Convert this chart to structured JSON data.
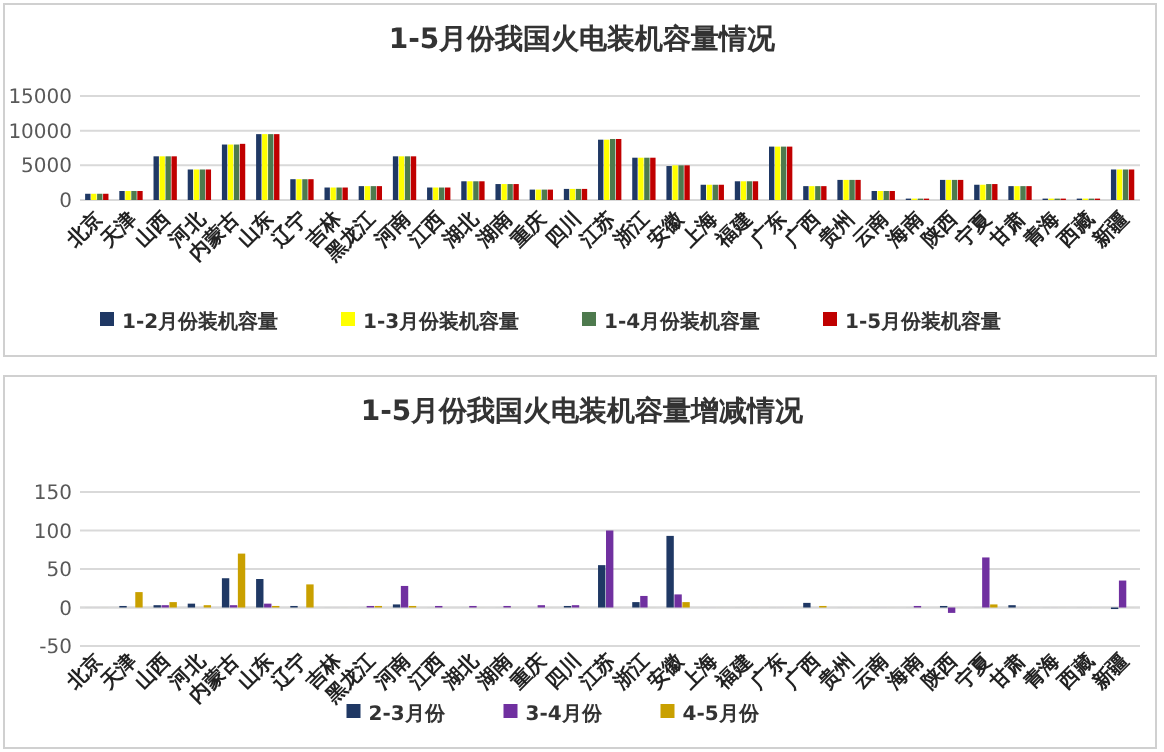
{
  "chart_data": [
    {
      "type": "bar",
      "title": "1-5月份我国火电装机容量情况",
      "categories": [
        "北京",
        "天津",
        "山西",
        "河北",
        "内蒙古",
        "山东",
        "辽宁",
        "吉林",
        "黑龙江",
        "河南",
        "江西",
        "湖北",
        "湖南",
        "重庆",
        "四川",
        "江苏",
        "浙江",
        "安徽",
        "上海",
        "福建",
        "广东",
        "广西",
        "贵州",
        "云南",
        "海南",
        "陕西",
        "宁夏",
        "甘肃",
        "青海",
        "西藏",
        "新疆"
      ],
      "series": [
        {
          "name": "1-2月份装机容量",
          "color": "#1f3864",
          "values": [
            900,
            1300,
            6300,
            4400,
            8000,
            9500,
            3000,
            1800,
            2000,
            6300,
            1800,
            2700,
            2300,
            1500,
            1600,
            8700,
            6100,
            4900,
            2200,
            2700,
            7700,
            2000,
            2900,
            1300,
            200,
            2900,
            2200,
            2000,
            200,
            200,
            4400
          ]
        },
        {
          "name": "1-3月份装机容量",
          "color": "#ffff00",
          "values": [
            900,
            1300,
            6300,
            4400,
            8000,
            9500,
            3000,
            1800,
            2000,
            6300,
            1800,
            2700,
            2300,
            1500,
            1600,
            8700,
            6100,
            5000,
            2200,
            2700,
            7700,
            2000,
            2900,
            1300,
            200,
            2900,
            2200,
            2000,
            200,
            200,
            4400
          ]
        },
        {
          "name": "1-4月份装机容量",
          "color": "#4e7a4e",
          "values": [
            900,
            1300,
            6300,
            4400,
            8000,
            9500,
            3000,
            1800,
            2000,
            6300,
            1800,
            2700,
            2300,
            1500,
            1600,
            8800,
            6100,
            5000,
            2200,
            2700,
            7700,
            2000,
            2900,
            1300,
            200,
            2900,
            2300,
            2000,
            200,
            200,
            4400
          ]
        },
        {
          "name": "1-5月份装机容量",
          "color": "#c00000",
          "values": [
            900,
            1300,
            6300,
            4400,
            8100,
            9500,
            3000,
            1800,
            2000,
            6300,
            1800,
            2700,
            2300,
            1500,
            1600,
            8800,
            6100,
            5000,
            2200,
            2700,
            7700,
            2000,
            2900,
            1300,
            200,
            2900,
            2300,
            2000,
            200,
            200,
            4400
          ]
        }
      ],
      "ylim": [
        0,
        15000
      ],
      "yticks": [
        0,
        5000,
        10000,
        15000
      ],
      "grid": "y",
      "legend": "bottom"
    },
    {
      "type": "bar",
      "title": "1-5月份我国火电装机容量增减情况",
      "categories": [
        "北京",
        "天津",
        "山西",
        "河北",
        "内蒙古",
        "山东",
        "辽宁",
        "吉林",
        "黑龙江",
        "河南",
        "江西",
        "湖北",
        "湖南",
        "重庆",
        "四川",
        "江苏",
        "浙江",
        "安徽",
        "上海",
        "福建",
        "广东",
        "广西",
        "贵州",
        "云南",
        "海南",
        "陕西",
        "宁夏",
        "甘肃",
        "青海",
        "西藏",
        "新疆"
      ],
      "series": [
        {
          "name": "2-3月份",
          "color": "#1f3864",
          "values": [
            0,
            2,
            3,
            5,
            38,
            37,
            2,
            0,
            0,
            4,
            0,
            0,
            0,
            0,
            2,
            55,
            7,
            93,
            0,
            0,
            0,
            6,
            0,
            0,
            0,
            2,
            0,
            3,
            0,
            0,
            -2
          ]
        },
        {
          "name": "3-4月份",
          "color": "#7030a0",
          "values": [
            0,
            0,
            3,
            0,
            3,
            5,
            0,
            0,
            2,
            28,
            2,
            2,
            2,
            3,
            3,
            100,
            15,
            17,
            0,
            0,
            0,
            0,
            0,
            0,
            2,
            -7,
            65,
            0,
            0,
            0,
            35
          ]
        },
        {
          "name": "4-5月份",
          "color": "#c9a000",
          "values": [
            0,
            20,
            7,
            3,
            70,
            2,
            30,
            0,
            2,
            2,
            0,
            0,
            0,
            0,
            0,
            0,
            0,
            7,
            0,
            0,
            0,
            2,
            0,
            0,
            0,
            0,
            4,
            0,
            0,
            0,
            0
          ]
        }
      ],
      "ylim": [
        -50,
        150
      ],
      "yticks": [
        -50,
        0,
        50,
        100,
        150
      ],
      "grid": "y",
      "legend": "bottom"
    }
  ]
}
